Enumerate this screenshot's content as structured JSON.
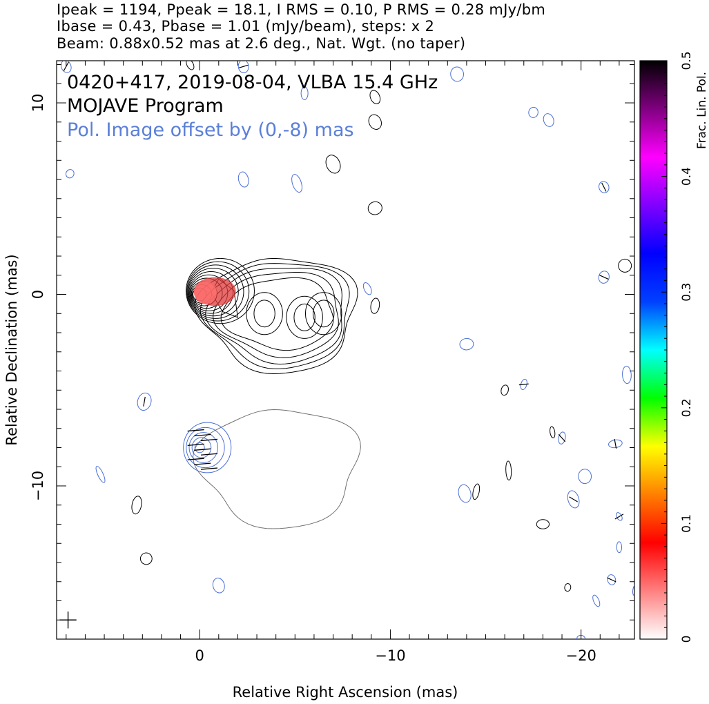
{
  "header": {
    "line1": "Ipeak = 1194, Ppeak = 18.1, I RMS = 0.10, P RMS = 0.28 mJy/bm",
    "line2": "Ibase = 0.43, Pbase = 1.01 (mJy/beam), steps: x 2",
    "line3": "Beam: 0.88x0.52 mas at 2.6 deg., Nat. Wgt. (no taper)"
  },
  "annotations": {
    "source": "0420+417, 2019-08-04, VLBA 15.4 GHz",
    "program": "MOJAVE Program",
    "offset_note": "Pol. Image offset by (0,-8) mas"
  },
  "colors": {
    "total_intensity_contours": "#000000",
    "polarization_contours": "#4a6fd6",
    "offset_contour": "#707070",
    "pol_fill": "#e03a3a",
    "offset_note_text": "#5a7fd8"
  },
  "chart_data": {
    "type": "contour",
    "xlabel": "Relative Right Ascension (mas)",
    "ylabel": "Relative Declination (mas)",
    "xlim": [
      7.5,
      -22.8
    ],
    "ylim": [
      -18,
      12.2
    ],
    "x_axis_reversed": true,
    "xticks": [
      0,
      -10,
      -20
    ],
    "xtick_labels": [
      "0",
      "−10",
      "−20"
    ],
    "yticks": [
      10,
      0,
      -10
    ],
    "ytick_labels": [
      "10",
      "0",
      "−10"
    ],
    "beam": {
      "major_mas": 0.88,
      "minor_mas": 0.52,
      "pa_deg": 2.6
    },
    "stokes_i": {
      "peak_mJy_per_beam": 1194,
      "rms_mJy_per_beam": 0.1,
      "base_mJy_per_beam": 0.43,
      "step": 2
    },
    "polarized": {
      "peak_mJy_per_beam": 18.1,
      "rms_mJy_per_beam": 0.28,
      "base_mJy_per_beam": 1.01,
      "offset_mas": [
        0,
        -8
      ]
    },
    "colorbar": {
      "label": "Frac. Lin. Pol.",
      "range": [
        0,
        0.5
      ],
      "ticks": [
        0,
        0.1,
        0.2,
        0.3,
        0.4,
        0.5
      ],
      "tick_labels": [
        "0",
        "0.1",
        "0.2",
        "0.3",
        "0.4",
        "0.5"
      ],
      "colormap_stops": [
        "#ffffff",
        "#ff8080",
        "#ff0000",
        "#ff8000",
        "#ffff00",
        "#00ff00",
        "#00ffff",
        "#0040ff",
        "#0000ff",
        "#8000ff",
        "#ff00ff",
        "#800080",
        "#000000"
      ]
    },
    "core_component": {
      "x": 0.0,
      "y": 0.0,
      "core_contours": 10
    },
    "jet_components": [
      {
        "x": -3.4,
        "y": -1.0
      },
      {
        "x": -5.5,
        "y": -1.2
      },
      {
        "x": -6.5,
        "y": -1.0
      }
    ]
  }
}
